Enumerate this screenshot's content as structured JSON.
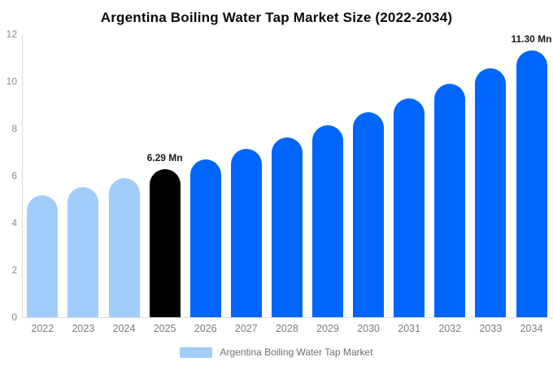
{
  "title": "Argentina Boiling Water Tap Market Size (2022-2034)",
  "legend": {
    "label": "Argentina Boiling Water Tap Market",
    "swatch_color": "#a2ccfa"
  },
  "chart_data": {
    "type": "bar",
    "title": "Argentina Boiling Water Tap Market Size (2022-2034)",
    "unit": "Mn",
    "categories": [
      "2022",
      "2023",
      "2024",
      "2025",
      "2026",
      "2027",
      "2028",
      "2029",
      "2030",
      "2031",
      "2032",
      "2033",
      "2034"
    ],
    "values": [
      5.18,
      5.53,
      5.9,
      6.29,
      6.7,
      7.15,
      7.63,
      8.14,
      8.68,
      9.26,
      9.88,
      10.54,
      11.3
    ],
    "value_labels": {
      "2025": "6.29 Mn",
      "2034": "11.30 Mn"
    },
    "color_roles": [
      "historical",
      "historical",
      "historical",
      "base_year",
      "forecast",
      "forecast",
      "forecast",
      "forecast",
      "forecast",
      "forecast",
      "forecast",
      "forecast",
      "forecast"
    ],
    "colors": {
      "historical": "#a2ccfa",
      "base_year": "#000000",
      "forecast": "#0066fb"
    },
    "xlabel": "",
    "ylabel": "",
    "ylim": [
      0,
      12
    ],
    "yticks": [
      0,
      2,
      4,
      6,
      8,
      10,
      12
    ],
    "grid": false,
    "legend_position": "bottom"
  }
}
